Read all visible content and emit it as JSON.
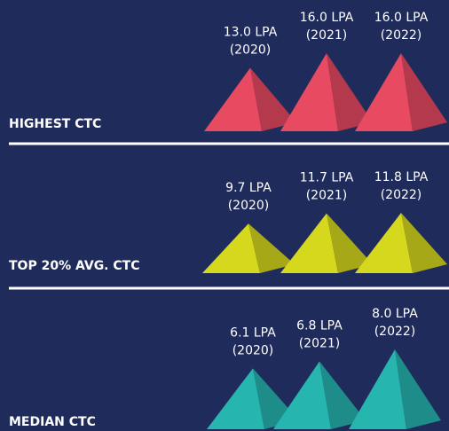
{
  "chart_data": [
    {
      "type": "pyramid",
      "title": "HIGHEST CTC",
      "categories": [
        "(2020)",
        "(2021)",
        "(2022)"
      ],
      "values": [
        13.0,
        16.0,
        16.0
      ],
      "value_labels": [
        "13.0 LPA",
        "16.0 LPA",
        "16.0 LPA"
      ],
      "color": "#e84a62"
    },
    {
      "type": "pyramid",
      "title": "TOP 20% AVG. CTC",
      "categories": [
        "(2020)",
        "(2021)",
        "(2022)"
      ],
      "values": [
        9.7,
        11.7,
        11.8
      ],
      "value_labels": [
        "9.7 LPA",
        "11.7 LPA",
        "11.8 LPA"
      ],
      "color": "#d6d81e"
    },
    {
      "type": "pyramid",
      "title": "MEDIAN CTC",
      "categories": [
        "(2020)",
        "(2021)",
        "(2022)"
      ],
      "values": [
        6.1,
        6.8,
        8.0
      ],
      "value_labels": [
        "6.1 LPA",
        "6.8 LPA",
        "8.0 LPA"
      ],
      "color": "#27b5b0"
    }
  ]
}
